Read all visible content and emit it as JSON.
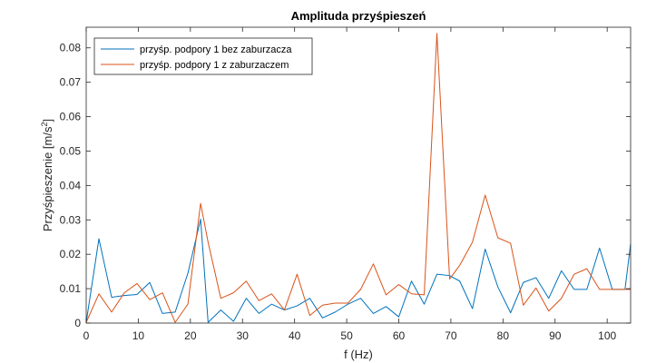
{
  "chart_data": {
    "type": "line",
    "title": "Amplituda przyśpieszeń",
    "xlabel": "f (Hz)",
    "ylabel": "Przyśpieszenie [m/s",
    "ylabel_sup": "2",
    "ylabel_end": "]",
    "xlim": [
      0,
      104.5
    ],
    "ylim": [
      0,
      0.086
    ],
    "xticks": [
      0,
      10,
      20,
      30,
      40,
      50,
      60,
      70,
      80,
      90,
      100
    ],
    "yticks": [
      0,
      0.01,
      0.02,
      0.03,
      0.04,
      0.05,
      0.06,
      0.07,
      0.08
    ],
    "ytick_labels": [
      "0",
      "0.01",
      "0.02",
      "0.03",
      "0.04",
      "0.05",
      "0.06",
      "0.07",
      "0.08"
    ],
    "grid": false,
    "legend_position": "top-left",
    "x": [
      0,
      2.44,
      4.88,
      7.32,
      9.76,
      12.2,
      14.64,
      17.08,
      19.52,
      21.96,
      23.4,
      25.84,
      28.28,
      30.72,
      33.16,
      35.6,
      38.04,
      40.48,
      42.92,
      45.36,
      47.8,
      50.24,
      52.68,
      55.12,
      57.56,
      60.0,
      62.44,
      64.88,
      67.32,
      69.76,
      71.7,
      74.14,
      76.58,
      79.02,
      81.46,
      83.9,
      86.34,
      88.78,
      91.22,
      93.66,
      96.1,
      98.54,
      100.98,
      103.42,
      104.5
    ],
    "series": [
      {
        "name": "przyśp. podpory 1 bez zaburzacza",
        "color": "#0072bd",
        "values": [
          0.0002,
          0.0245,
          0.0075,
          0.008,
          0.0083,
          0.0118,
          0.0028,
          0.0032,
          0.0145,
          0.0302,
          0.0002,
          0.0038,
          0.0005,
          0.0072,
          0.0028,
          0.0055,
          0.0038,
          0.005,
          0.0072,
          0.0015,
          0.0032,
          0.0055,
          0.0072,
          0.0028,
          0.0048,
          0.0018,
          0.0122,
          0.0055,
          0.0142,
          0.0138,
          0.0122,
          0.0042,
          0.0215,
          0.0105,
          0.003,
          0.0118,
          0.0132,
          0.0072,
          0.0152,
          0.0098,
          0.0098,
          0.0218,
          0.0098,
          0.0098,
          0.023
        ]
      },
      {
        "name": "przyśp. podpory 1 z zaburzaczem",
        "color": "#d95319",
        "values": [
          0.0002,
          0.0085,
          0.0032,
          0.0088,
          0.0115,
          0.0068,
          0.0088,
          0.0002,
          0.0055,
          0.0348,
          0.0235,
          0.0072,
          0.0088,
          0.0122,
          0.0065,
          0.0085,
          0.0038,
          0.0142,
          0.0022,
          0.0052,
          0.0058,
          0.0058,
          0.0098,
          0.0172,
          0.0082,
          0.0112,
          0.0085,
          0.0082,
          0.0842,
          0.0128,
          0.0168,
          0.0235,
          0.0372,
          0.0248,
          0.0232,
          0.0052,
          0.0102,
          0.0035,
          0.0072,
          0.0142,
          0.0158,
          0.0098,
          0.0098,
          0.0098,
          0.0098
        ]
      }
    ]
  }
}
